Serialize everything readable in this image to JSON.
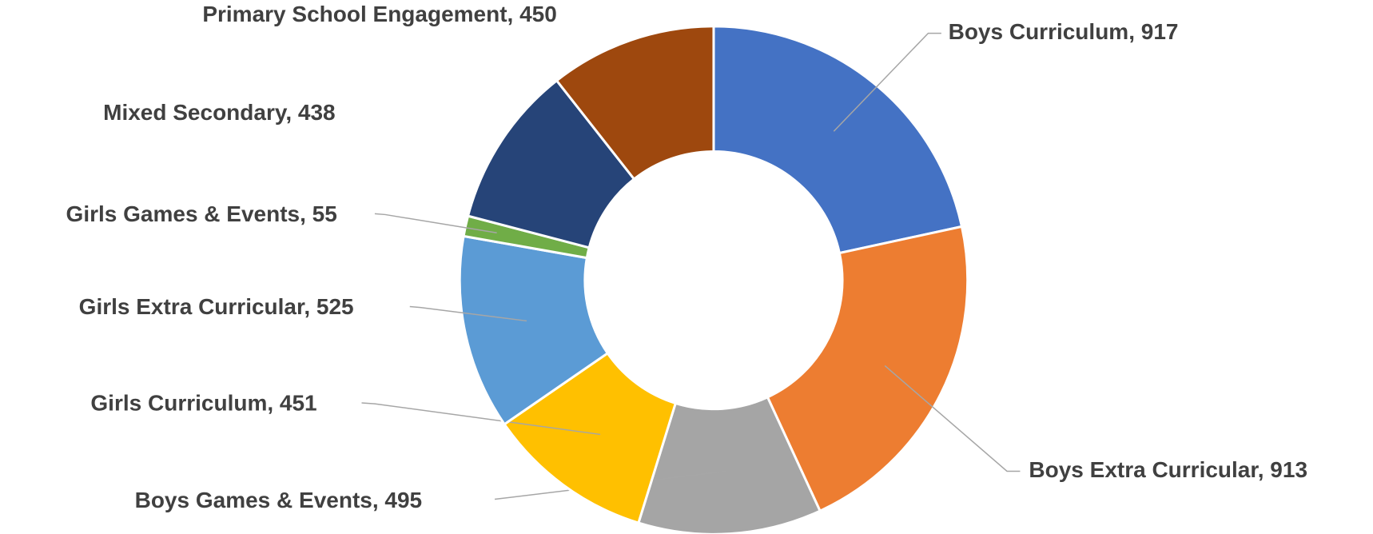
{
  "chart_data": {
    "type": "donut",
    "values": [
      917,
      913,
      495,
      451,
      525,
      55,
      438,
      450
    ],
    "value_labels": [
      "Boys Curriculum, 917",
      "Boys Extra Curricular, 913",
      "Boys Games & Events, 495",
      "Girls Curriculum, 451",
      "Girls Extra Curricular, 525",
      "Girls Games & Events, 55",
      "Mixed Secondary, 438",
      "Primary School Engagement, 450"
    ],
    "colors": [
      "#4472c4",
      "#ed7d31",
      "#a5a5a5",
      "#ffc000",
      "#5b9bd5",
      "#70ad47",
      "#264478",
      "#9e480e"
    ]
  }
}
